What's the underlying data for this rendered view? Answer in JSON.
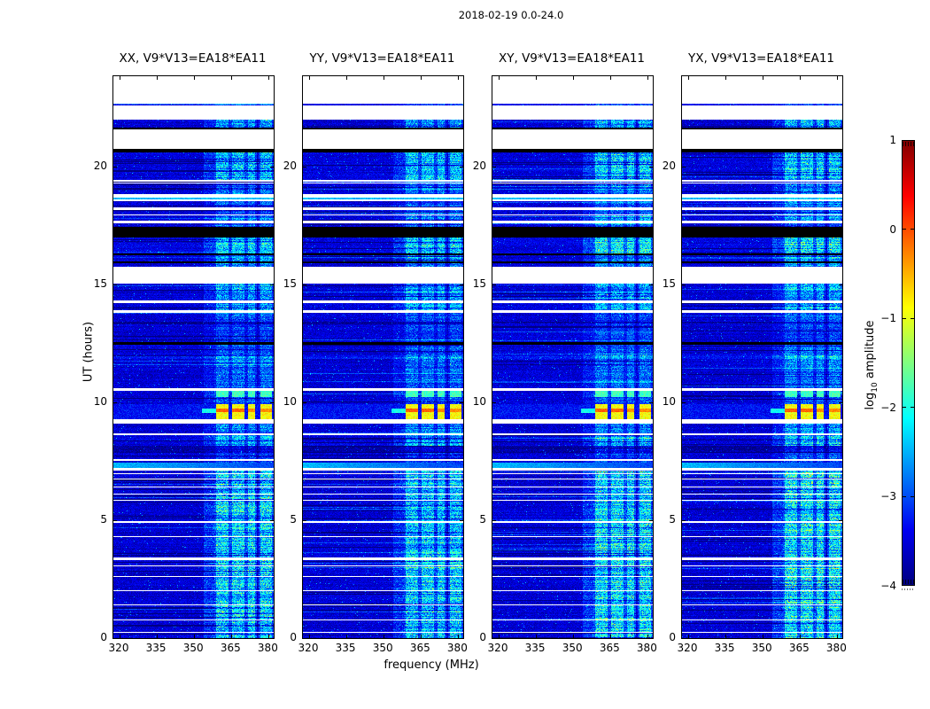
{
  "figure": {
    "title": "2018-02-19 0.0-24.0",
    "background": "#ffffff",
    "axis_color": "#000000"
  },
  "chart_data": {
    "type": "heatmap",
    "title": "2018-02-19 0.0-24.0",
    "xlabel": "frequency (MHz)",
    "ylabel": "UT (hours)",
    "x_range": [
      317.5,
      382.0
    ],
    "x_ticks": [
      320,
      335,
      350,
      365,
      380
    ],
    "x_tick_labels": [
      "320",
      "335",
      "350",
      "365",
      "380"
    ],
    "y_range": [
      0,
      23.85
    ],
    "y_ticks": [
      0,
      5,
      10,
      15,
      20
    ],
    "y_tick_labels": [
      "0",
      "5",
      "10",
      "15",
      "20"
    ],
    "panels": [
      {
        "pol": "XX",
        "label": "XX, V9*V13=EA18*EA11",
        "seed": 101,
        "stripe_gain": 1.0
      },
      {
        "pol": "YY",
        "label": "YY, V9*V13=EA18*EA11",
        "seed": 202,
        "stripe_gain": 0.93
      },
      {
        "pol": "XY",
        "label": "XY, V9*V13=EA18*EA11",
        "seed": 303,
        "stripe_gain": 1.0
      },
      {
        "pol": "YX",
        "label": "YX, V9*V13=EA18*EA11",
        "seed": 404,
        "stripe_gain": 1.12
      }
    ],
    "colorbar": {
      "label_main": "log",
      "label_sub": "10",
      "label_rest": " amplitude",
      "range": [
        -4,
        1
      ],
      "ticks": [
        1,
        0,
        -1,
        -2,
        -3,
        -4
      ],
      "tick_labels": [
        "1",
        "0",
        "−1",
        "−2",
        "−3",
        "−4"
      ],
      "colormap": "jet"
    },
    "colormap_stops": [
      [
        0.0,
        "#000080"
      ],
      [
        0.125,
        "#0000f2"
      ],
      [
        0.375,
        "#00ffff"
      ],
      [
        0.625,
        "#ffff00"
      ],
      [
        0.875,
        "#ff0000"
      ],
      [
        1.0,
        "#800000"
      ]
    ],
    "noise_floor_log10": -3.55,
    "rfi_bands_mhz": [
      [
        358.8,
        363.8
      ],
      [
        365.2,
        370.3
      ],
      [
        371.5,
        374.6
      ],
      [
        376.5,
        381.3
      ]
    ],
    "rfi_shoulder": {
      "f0": 353.8,
      "f1": 358.8,
      "gain": 0.33
    },
    "bright_event": {
      "t_top": 9.92,
      "t_bot": 9.3,
      "level": -0.9,
      "core_t_top": 9.74,
      "core_t_bot": 9.58,
      "core_levels": [
        -0.1,
        -0.12,
        -0.3,
        -0.32
      ],
      "tail_f": [
        353.0,
        358.8
      ],
      "tail_t": [
        9.56,
        9.76
      ],
      "tail_level": -2.05,
      "background_level": -3.3
    },
    "green_row_level": -1.8,
    "cyan_row_level": -2.45,
    "light_band": {
      "left_level": -2.45,
      "right_level": -3.05
    },
    "time_segments": [
      [
        23.85,
        22.68,
        "w",
        0,
        0
      ],
      [
        22.68,
        22.6,
        "d",
        0.5,
        0.15
      ],
      [
        22.6,
        22.02,
        "w",
        0,
        0
      ],
      [
        22.02,
        21.68,
        "d",
        1.0,
        0
      ],
      [
        21.68,
        21.61,
        "k",
        0,
        0
      ],
      [
        21.61,
        20.78,
        "w",
        0,
        0
      ],
      [
        20.78,
        20.62,
        "k",
        0,
        0
      ],
      [
        20.62,
        19.43,
        "d",
        1.1,
        0.05
      ],
      [
        19.43,
        19.36,
        "w",
        0,
        0
      ],
      [
        19.36,
        19.32,
        "d",
        0.5,
        0
      ],
      [
        19.32,
        19.28,
        "w",
        0,
        0
      ],
      [
        19.28,
        18.84,
        "d",
        0.7,
        0
      ],
      [
        18.84,
        18.71,
        "w",
        0,
        0
      ],
      [
        18.71,
        18.61,
        "c",
        0.8,
        0
      ],
      [
        18.61,
        18.53,
        "w",
        0,
        0
      ],
      [
        18.53,
        18.28,
        "d",
        0.6,
        0
      ],
      [
        18.28,
        18.18,
        "w",
        0,
        0
      ],
      [
        18.18,
        18.0,
        "d",
        0.6,
        0
      ],
      [
        18.0,
        17.93,
        "w",
        0,
        0
      ],
      [
        17.93,
        17.7,
        "d",
        0.8,
        0.05
      ],
      [
        17.7,
        17.61,
        "w",
        0,
        0
      ],
      [
        17.61,
        17.47,
        "d",
        0.7,
        0
      ],
      [
        17.47,
        17.0,
        "k",
        0,
        0
      ],
      [
        17.0,
        16.32,
        "d",
        1.25,
        0.08
      ],
      [
        16.32,
        16.24,
        "k",
        0,
        0
      ],
      [
        16.24,
        16.0,
        "d",
        0.8,
        0
      ],
      [
        16.0,
        15.93,
        "k",
        0,
        0
      ],
      [
        15.93,
        15.75,
        "d",
        0.8,
        0
      ],
      [
        15.75,
        15.06,
        "w",
        0,
        0
      ],
      [
        15.06,
        14.32,
        "d",
        0.9,
        0
      ],
      [
        14.32,
        14.21,
        "w",
        0,
        0
      ],
      [
        14.21,
        13.93,
        "d",
        1.0,
        0.05
      ],
      [
        13.93,
        13.81,
        "w",
        0,
        0
      ],
      [
        13.81,
        13.44,
        "d",
        0.6,
        0
      ],
      [
        13.44,
        13.33,
        "d",
        0.3,
        -0.35
      ],
      [
        13.33,
        12.56,
        "d",
        0.5,
        0
      ],
      [
        12.56,
        12.44,
        "k",
        0,
        0
      ],
      [
        12.44,
        11.99,
        "d",
        0.6,
        0
      ],
      [
        11.99,
        11.86,
        "d",
        0.9,
        0.25
      ],
      [
        11.86,
        10.6,
        "d",
        0.7,
        0
      ],
      [
        10.6,
        10.5,
        "w",
        0,
        0
      ],
      [
        10.5,
        10.22,
        "g",
        1.3,
        0
      ],
      [
        10.22,
        9.92,
        "d",
        0.6,
        0
      ],
      [
        9.92,
        9.3,
        "e",
        1.0,
        0
      ],
      [
        9.3,
        9.12,
        "w",
        0,
        0
      ],
      [
        9.12,
        8.7,
        "d",
        0.85,
        0
      ],
      [
        8.7,
        8.61,
        "w",
        0,
        0
      ],
      [
        8.61,
        8.16,
        "d",
        1.0,
        0.05
      ],
      [
        8.16,
        7.85,
        "d",
        0.4,
        -0.3
      ],
      [
        7.85,
        7.6,
        "d",
        0.5,
        0
      ],
      [
        7.6,
        7.51,
        "w",
        0,
        0
      ],
      [
        7.51,
        7.43,
        "d",
        0.5,
        0
      ],
      [
        7.43,
        7.22,
        "l",
        0.3,
        0
      ],
      [
        7.22,
        7.1,
        "w",
        0,
        0
      ],
      [
        7.1,
        7.0,
        "d",
        1.25,
        0
      ],
      [
        7.0,
        6.95,
        "w",
        0,
        0
      ],
      [
        6.95,
        6.78,
        "d",
        1.25,
        0
      ],
      [
        6.78,
        6.73,
        "w",
        0,
        0
      ],
      [
        6.73,
        6.45,
        "d",
        1.25,
        0
      ],
      [
        6.45,
        6.4,
        "w",
        0,
        0
      ],
      [
        6.4,
        6.13,
        "d",
        1.25,
        0
      ],
      [
        6.13,
        6.08,
        "w",
        0,
        0
      ],
      [
        6.08,
        5.88,
        "d",
        1.25,
        0
      ],
      [
        5.88,
        5.84,
        "w",
        0,
        0
      ],
      [
        5.84,
        4.95,
        "d",
        1.25,
        0
      ],
      [
        4.95,
        4.9,
        "w",
        0,
        0
      ],
      [
        4.9,
        4.33,
        "d",
        1.25,
        0
      ],
      [
        4.33,
        4.28,
        "w",
        0,
        0
      ],
      [
        4.28,
        3.42,
        "d",
        1.25,
        0
      ],
      [
        3.42,
        3.3,
        "w",
        0,
        0
      ],
      [
        3.3,
        3.08,
        "d",
        1.25,
        0
      ],
      [
        3.08,
        3.04,
        "w",
        0,
        0
      ],
      [
        3.04,
        2.64,
        "d",
        1.25,
        0
      ],
      [
        2.64,
        2.6,
        "w",
        0,
        0
      ],
      [
        2.6,
        2.04,
        "d",
        1.25,
        0
      ],
      [
        2.04,
        2.0,
        "w",
        0,
        0
      ],
      [
        2.0,
        1.44,
        "d",
        1.25,
        0
      ],
      [
        1.44,
        1.4,
        "w",
        0,
        0
      ],
      [
        1.4,
        0.78,
        "d",
        1.25,
        0
      ],
      [
        0.78,
        0.74,
        "w",
        0,
        0
      ],
      [
        0.74,
        0.25,
        "d",
        1.25,
        0
      ],
      [
        0.25,
        0.21,
        "w",
        0,
        0
      ],
      [
        0.21,
        0.0,
        "d",
        1.25,
        0
      ]
    ]
  }
}
